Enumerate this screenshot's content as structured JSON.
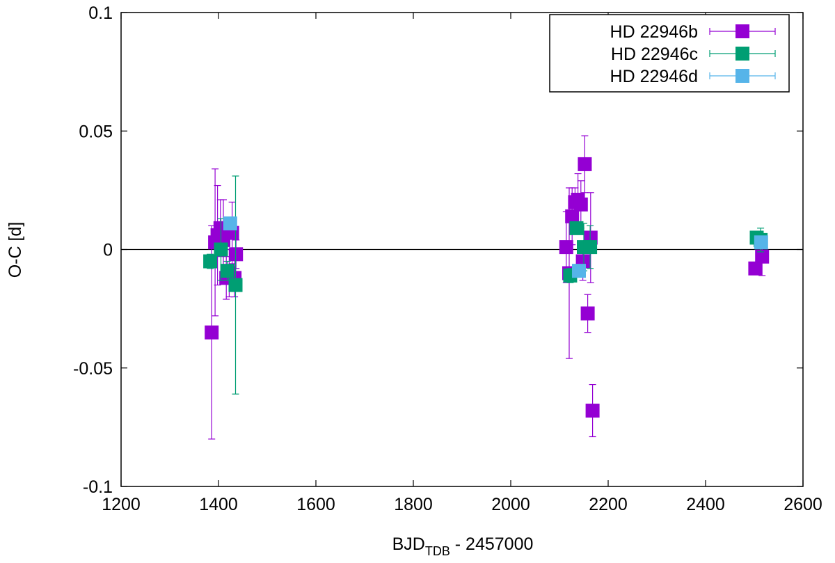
{
  "chart_data": {
    "type": "scatter",
    "title": "",
    "xlabel_main": "BJD",
    "xlabel_sub": "TDB",
    "xlabel_rest": " - 2457000",
    "ylabel": "O-C [d]",
    "xlim": [
      1200,
      2600
    ],
    "ylim": [
      -0.1,
      0.1
    ],
    "xticks": [
      1200,
      1400,
      1600,
      1800,
      2000,
      2200,
      2400,
      2600
    ],
    "yticks": [
      -0.1,
      -0.05,
      0,
      0.05,
      0.1
    ],
    "xtick_labels": [
      "1200",
      "1400",
      "1600",
      "1800",
      "2000",
      "2200",
      "2400",
      "2600"
    ],
    "ytick_labels": [
      "-0.1",
      "-0.05",
      "0",
      "0.05",
      "0.1"
    ],
    "zero_line": true,
    "grid": false,
    "legend_position": "top-right",
    "series": [
      {
        "name": "HD 22946b",
        "color": "#9400d3",
        "points": [
          {
            "x": 1386,
            "y": -0.035,
            "err": 0.045
          },
          {
            "x": 1393,
            "y": 0.003,
            "err": 0.031
          },
          {
            "x": 1398,
            "y": 0.006,
            "err": 0.021
          },
          {
            "x": 1404,
            "y": 0.009,
            "err": 0.012
          },
          {
            "x": 1410,
            "y": 0.004,
            "err": 0.017
          },
          {
            "x": 1416,
            "y": -0.012,
            "err": 0.009
          },
          {
            "x": 1422,
            "y": -0.01,
            "err": 0.01
          },
          {
            "x": 1428,
            "y": 0.007,
            "err": 0.013
          },
          {
            "x": 1433,
            "y": -0.012,
            "err": 0.008
          },
          {
            "x": 1436,
            "y": -0.002,
            "err": 0.006
          },
          {
            "x": 2114,
            "y": 0.001,
            "err": 0.015
          },
          {
            "x": 2120,
            "y": -0.01,
            "err": 0.036
          },
          {
            "x": 2126,
            "y": 0.014,
            "err": 0.012
          },
          {
            "x": 2132,
            "y": 0.02,
            "err": 0.006
          },
          {
            "x": 2138,
            "y": 0.021,
            "err": 0.011
          },
          {
            "x": 2144,
            "y": 0.019,
            "err": 0.01
          },
          {
            "x": 2148,
            "y": -0.005,
            "err": 0.008
          },
          {
            "x": 2152,
            "y": 0.036,
            "err": 0.012
          },
          {
            "x": 2158,
            "y": -0.027,
            "err": 0.008
          },
          {
            "x": 2164,
            "y": 0.005,
            "err": 0.019
          },
          {
            "x": 2168,
            "y": -0.068,
            "err": 0.011
          },
          {
            "x": 2502,
            "y": -0.008,
            "err": 0.002
          },
          {
            "x": 2516,
            "y": -0.003,
            "err": 0.008
          }
        ]
      },
      {
        "name": "HD 22946c",
        "color": "#009e73",
        "points": [
          {
            "x": 1383,
            "y": -0.005,
            "err": 0.003
          },
          {
            "x": 1405,
            "y": 0.0,
            "err": 0.013
          },
          {
            "x": 1418,
            "y": -0.009,
            "err": 0.004
          },
          {
            "x": 1435,
            "y": -0.015,
            "err": 0.046
          },
          {
            "x": 2122,
            "y": -0.011,
            "err": 0.003
          },
          {
            "x": 2135,
            "y": 0.009,
            "err": 0.002
          },
          {
            "x": 2150,
            "y": 0.001,
            "err": 0.01
          },
          {
            "x": 2163,
            "y": 0.001,
            "err": 0.009
          },
          {
            "x": 2505,
            "y": 0.005,
            "err": 0.002
          },
          {
            "x": 2513,
            "y": 0.004,
            "err": 0.005
          }
        ]
      },
      {
        "name": "HD 22946d",
        "color": "#56b4e9",
        "points": [
          {
            "x": 1424,
            "y": 0.011,
            "err": 0.002
          },
          {
            "x": 2140,
            "y": -0.009,
            "err": 0.002
          },
          {
            "x": 2514,
            "y": 0.003,
            "err": 0.002
          }
        ]
      }
    ]
  }
}
